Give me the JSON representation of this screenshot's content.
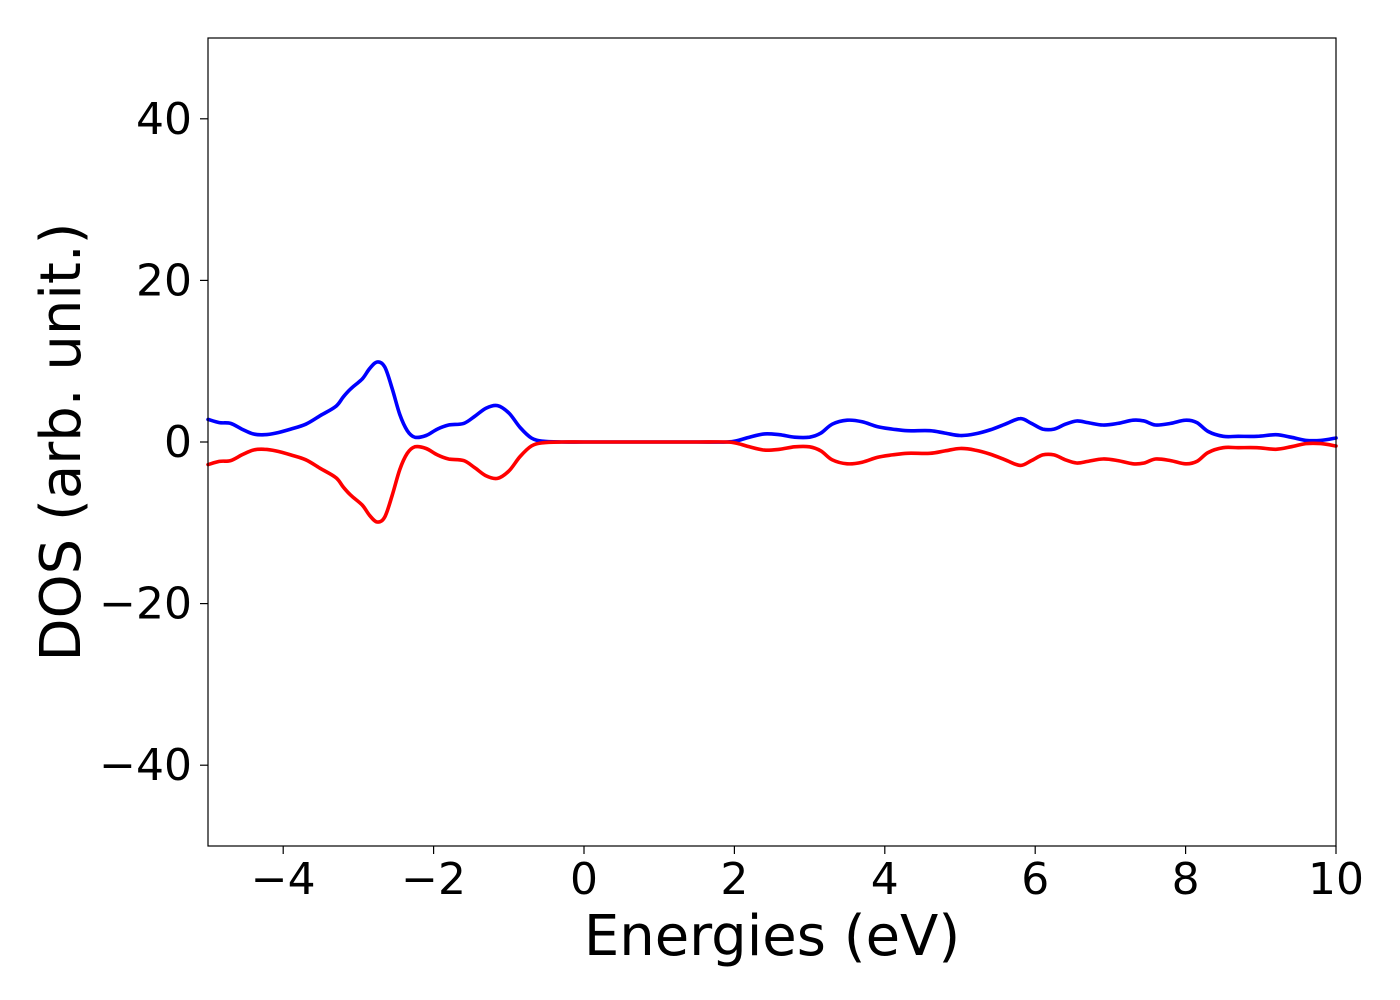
{
  "chart_data": {
    "type": "line",
    "title": "",
    "xlabel": "Energies (eV)",
    "ylabel": "DOS (arb. unit.)",
    "xlim": [
      -5,
      10
    ],
    "ylim": [
      -50,
      50
    ],
    "x_ticks": [
      -4,
      -2,
      0,
      2,
      4,
      6,
      8,
      10
    ],
    "y_ticks": [
      -40,
      -20,
      0,
      20,
      40
    ],
    "x_tick_labels": [
      "−4",
      "−2",
      "0",
      "2",
      "4",
      "6",
      "8",
      "10"
    ],
    "y_tick_labels": [
      "−40",
      "−20",
      "0",
      "20",
      "40"
    ],
    "grid": false,
    "legend": "none",
    "series": [
      {
        "color": "#0000ff",
        "points": [
          [
            -5.0,
            2.8
          ],
          [
            -4.85,
            2.4
          ],
          [
            -4.7,
            2.3
          ],
          [
            -4.55,
            1.6
          ],
          [
            -4.4,
            1.0
          ],
          [
            -4.25,
            0.9
          ],
          [
            -4.1,
            1.1
          ],
          [
            -3.9,
            1.6
          ],
          [
            -3.7,
            2.2
          ],
          [
            -3.5,
            3.3
          ],
          [
            -3.3,
            4.4
          ],
          [
            -3.2,
            5.6
          ],
          [
            -3.1,
            6.6
          ],
          [
            -2.95,
            7.8
          ],
          [
            -2.85,
            9.1
          ],
          [
            -2.75,
            9.9
          ],
          [
            -2.65,
            9.3
          ],
          [
            -2.55,
            6.6
          ],
          [
            -2.45,
            3.4
          ],
          [
            -2.35,
            1.4
          ],
          [
            -2.25,
            0.6
          ],
          [
            -2.1,
            0.8
          ],
          [
            -1.95,
            1.6
          ],
          [
            -1.8,
            2.1
          ],
          [
            -1.6,
            2.3
          ],
          [
            -1.45,
            3.2
          ],
          [
            -1.3,
            4.2
          ],
          [
            -1.15,
            4.5
          ],
          [
            -1.0,
            3.6
          ],
          [
            -0.85,
            1.8
          ],
          [
            -0.7,
            0.5
          ],
          [
            -0.55,
            0.1
          ],
          [
            -0.3,
            0.0
          ],
          [
            0.0,
            0.0
          ],
          [
            0.5,
            0.0
          ],
          [
            1.0,
            0.0
          ],
          [
            1.5,
            0.0
          ],
          [
            1.9,
            0.0
          ],
          [
            2.05,
            0.2
          ],
          [
            2.2,
            0.6
          ],
          [
            2.4,
            1.0
          ],
          [
            2.6,
            0.9
          ],
          [
            2.8,
            0.6
          ],
          [
            3.0,
            0.6
          ],
          [
            3.15,
            1.1
          ],
          [
            3.3,
            2.2
          ],
          [
            3.5,
            2.7
          ],
          [
            3.7,
            2.5
          ],
          [
            3.9,
            1.9
          ],
          [
            4.1,
            1.6
          ],
          [
            4.3,
            1.4
          ],
          [
            4.6,
            1.4
          ],
          [
            4.8,
            1.1
          ],
          [
            5.0,
            0.8
          ],
          [
            5.2,
            1.0
          ],
          [
            5.4,
            1.5
          ],
          [
            5.6,
            2.2
          ],
          [
            5.8,
            2.9
          ],
          [
            5.95,
            2.3
          ],
          [
            6.1,
            1.6
          ],
          [
            6.25,
            1.6
          ],
          [
            6.4,
            2.2
          ],
          [
            6.55,
            2.6
          ],
          [
            6.7,
            2.4
          ],
          [
            6.9,
            2.1
          ],
          [
            7.1,
            2.3
          ],
          [
            7.3,
            2.7
          ],
          [
            7.45,
            2.6
          ],
          [
            7.6,
            2.1
          ],
          [
            7.8,
            2.3
          ],
          [
            8.0,
            2.7
          ],
          [
            8.15,
            2.4
          ],
          [
            8.3,
            1.3
          ],
          [
            8.5,
            0.7
          ],
          [
            8.7,
            0.7
          ],
          [
            8.95,
            0.7
          ],
          [
            9.2,
            0.9
          ],
          [
            9.4,
            0.6
          ],
          [
            9.6,
            0.2
          ],
          [
            9.8,
            0.2
          ],
          [
            10.0,
            0.5
          ]
        ]
      },
      {
        "color": "#ff0000",
        "points": [
          [
            -5.0,
            -2.8
          ],
          [
            -4.85,
            -2.4
          ],
          [
            -4.7,
            -2.3
          ],
          [
            -4.55,
            -1.6
          ],
          [
            -4.4,
            -1.0
          ],
          [
            -4.25,
            -0.9
          ],
          [
            -4.1,
            -1.1
          ],
          [
            -3.9,
            -1.6
          ],
          [
            -3.7,
            -2.2
          ],
          [
            -3.5,
            -3.3
          ],
          [
            -3.3,
            -4.4
          ],
          [
            -3.2,
            -5.6
          ],
          [
            -3.1,
            -6.6
          ],
          [
            -2.95,
            -7.8
          ],
          [
            -2.85,
            -9.1
          ],
          [
            -2.75,
            -9.9
          ],
          [
            -2.65,
            -9.3
          ],
          [
            -2.55,
            -6.6
          ],
          [
            -2.45,
            -3.4
          ],
          [
            -2.35,
            -1.4
          ],
          [
            -2.25,
            -0.6
          ],
          [
            -2.1,
            -0.8
          ],
          [
            -1.95,
            -1.6
          ],
          [
            -1.8,
            -2.1
          ],
          [
            -1.6,
            -2.3
          ],
          [
            -1.45,
            -3.2
          ],
          [
            -1.3,
            -4.2
          ],
          [
            -1.15,
            -4.5
          ],
          [
            -1.0,
            -3.6
          ],
          [
            -0.85,
            -1.8
          ],
          [
            -0.7,
            -0.5
          ],
          [
            -0.55,
            -0.1
          ],
          [
            -0.3,
            0.0
          ],
          [
            0.0,
            0.0
          ],
          [
            0.5,
            0.0
          ],
          [
            1.0,
            0.0
          ],
          [
            1.5,
            0.0
          ],
          [
            1.9,
            0.0
          ],
          [
            2.05,
            -0.2
          ],
          [
            2.2,
            -0.6
          ],
          [
            2.4,
            -1.0
          ],
          [
            2.6,
            -0.9
          ],
          [
            2.8,
            -0.6
          ],
          [
            3.0,
            -0.6
          ],
          [
            3.15,
            -1.1
          ],
          [
            3.3,
            -2.2
          ],
          [
            3.5,
            -2.7
          ],
          [
            3.7,
            -2.5
          ],
          [
            3.9,
            -1.9
          ],
          [
            4.1,
            -1.6
          ],
          [
            4.3,
            -1.4
          ],
          [
            4.6,
            -1.4
          ],
          [
            4.8,
            -1.1
          ],
          [
            5.0,
            -0.8
          ],
          [
            5.2,
            -1.0
          ],
          [
            5.4,
            -1.5
          ],
          [
            5.6,
            -2.2
          ],
          [
            5.8,
            -2.9
          ],
          [
            5.95,
            -2.3
          ],
          [
            6.1,
            -1.6
          ],
          [
            6.25,
            -1.6
          ],
          [
            6.4,
            -2.2
          ],
          [
            6.55,
            -2.6
          ],
          [
            6.7,
            -2.4
          ],
          [
            6.9,
            -2.1
          ],
          [
            7.1,
            -2.3
          ],
          [
            7.3,
            -2.7
          ],
          [
            7.45,
            -2.6
          ],
          [
            7.6,
            -2.1
          ],
          [
            7.8,
            -2.3
          ],
          [
            8.0,
            -2.7
          ],
          [
            8.15,
            -2.4
          ],
          [
            8.3,
            -1.3
          ],
          [
            8.5,
            -0.7
          ],
          [
            8.7,
            -0.7
          ],
          [
            8.95,
            -0.7
          ],
          [
            9.2,
            -0.9
          ],
          [
            9.4,
            -0.6
          ],
          [
            9.6,
            -0.2
          ],
          [
            9.8,
            -0.2
          ],
          [
            10.0,
            -0.5
          ]
        ]
      }
    ]
  }
}
